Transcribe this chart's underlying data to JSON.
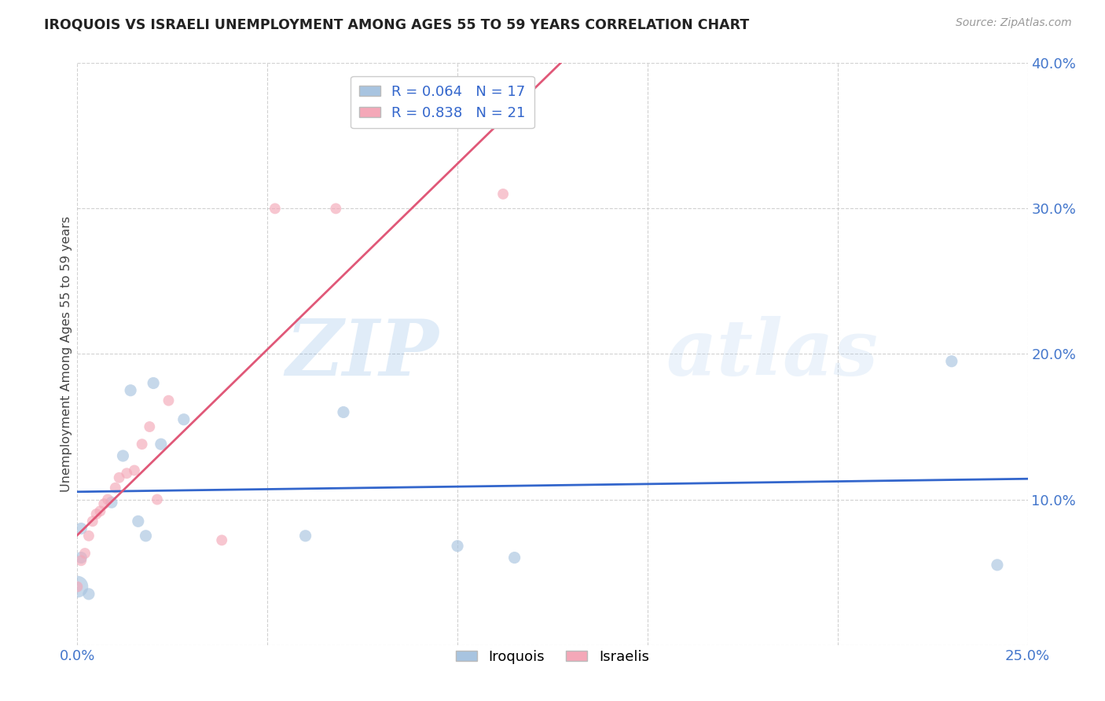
{
  "title": "IROQUOIS VS ISRAELI UNEMPLOYMENT AMONG AGES 55 TO 59 YEARS CORRELATION CHART",
  "source": "Source: ZipAtlas.com",
  "ylabel": "Unemployment Among Ages 55 to 59 years",
  "xlim": [
    0.0,
    0.25
  ],
  "ylim": [
    0.0,
    0.4
  ],
  "xticks": [
    0.0,
    0.05,
    0.1,
    0.15,
    0.2,
    0.25
  ],
  "yticks": [
    0.0,
    0.1,
    0.2,
    0.3,
    0.4
  ],
  "xtick_labels": [
    "0.0%",
    "",
    "",
    "",
    "",
    "25.0%"
  ],
  "ytick_labels": [
    "",
    "10.0%",
    "20.0%",
    "30.0%",
    "40.0%"
  ],
  "background_color": "#ffffff",
  "grid_color": "#cccccc",
  "iroquois_color": "#a8c4e0",
  "israeli_color": "#f4a8b8",
  "iroquois_line_color": "#3366cc",
  "israeli_line_color": "#e05878",
  "legend_R_iroquois": "0.064",
  "legend_N_iroquois": "17",
  "legend_R_israeli": "0.838",
  "legend_N_israeli": "21",
  "watermark_zip": "ZIP",
  "watermark_atlas": "atlas",
  "iroquois_x": [
    0.001,
    0.001,
    0.003,
    0.009,
    0.012,
    0.014,
    0.016,
    0.018,
    0.02,
    0.022,
    0.028,
    0.06,
    0.07,
    0.1,
    0.115,
    0.23,
    0.242
  ],
  "iroquois_y": [
    0.06,
    0.08,
    0.035,
    0.098,
    0.13,
    0.175,
    0.085,
    0.075,
    0.18,
    0.138,
    0.155,
    0.075,
    0.16,
    0.068,
    0.06,
    0.195,
    0.055
  ],
  "iroquois_size": 120,
  "israeli_x": [
    0.0,
    0.001,
    0.002,
    0.003,
    0.004,
    0.005,
    0.006,
    0.007,
    0.008,
    0.01,
    0.011,
    0.013,
    0.015,
    0.017,
    0.019,
    0.021,
    0.024,
    0.038,
    0.052,
    0.068,
    0.112
  ],
  "israeli_y": [
    0.04,
    0.058,
    0.063,
    0.075,
    0.085,
    0.09,
    0.092,
    0.097,
    0.1,
    0.108,
    0.115,
    0.118,
    0.12,
    0.138,
    0.15,
    0.1,
    0.168,
    0.072,
    0.3,
    0.3,
    0.31
  ],
  "israeli_size": 100,
  "iroquois_big_x": [
    0.0
  ],
  "iroquois_big_y": [
    0.04
  ],
  "iroquois_big_size": 400
}
